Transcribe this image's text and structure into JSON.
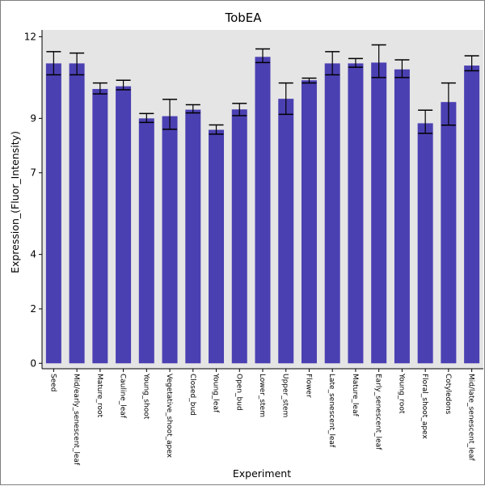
{
  "chart_data": {
    "type": "bar",
    "title": "TobEA",
    "xlabel": "Experiment",
    "ylabel": "Expression_(Fluor_Intensity)",
    "ylim": [
      -0.2,
      12.25
    ],
    "yticks": [
      0,
      2,
      4,
      7,
      9,
      12
    ],
    "ytick_labels": [
      "0",
      "2",
      "4",
      "7",
      "9",
      "12"
    ],
    "grid": false,
    "legend": "none",
    "bar_color": "#4b40b2",
    "plot_background": "#e5e5e5",
    "categories": [
      "Seed",
      "Mid/early_senescent_leaf",
      "Mature_root",
      "Cauline_leaf",
      "Young_shoot",
      "Vegetative_shoot_apex",
      "Closed_bud",
      "Young_leaf",
      "Open_bud",
      "Lower_stem",
      "Upper_stem",
      "Flower",
      "Late_senescent_leaf",
      "Mature_leaf",
      "Early_senescent_leaf",
      "Young_root",
      "Floral_shoot_apex",
      "Cotyledons",
      "Mid/late_senescent_leaf"
    ],
    "values": [
      11.02,
      11.02,
      10.08,
      10.18,
      9.0,
      9.08,
      9.32,
      8.58,
      9.33,
      11.26,
      9.72,
      10.4,
      11.02,
      11.02,
      11.05,
      10.8,
      8.82,
      9.6,
      10.94
    ],
    "error_low": [
      10.6,
      10.6,
      9.9,
      10.05,
      8.85,
      8.6,
      9.2,
      8.42,
      9.1,
      11.05,
      9.15,
      10.3,
      10.6,
      10.88,
      10.5,
      10.5,
      8.45,
      8.75,
      10.75
    ],
    "error_high": [
      11.45,
      11.4,
      10.3,
      10.4,
      9.18,
      9.7,
      9.5,
      8.76,
      9.55,
      11.55,
      10.3,
      10.48,
      11.45,
      11.2,
      11.7,
      11.15,
      9.3,
      10.3,
      11.3
    ]
  }
}
